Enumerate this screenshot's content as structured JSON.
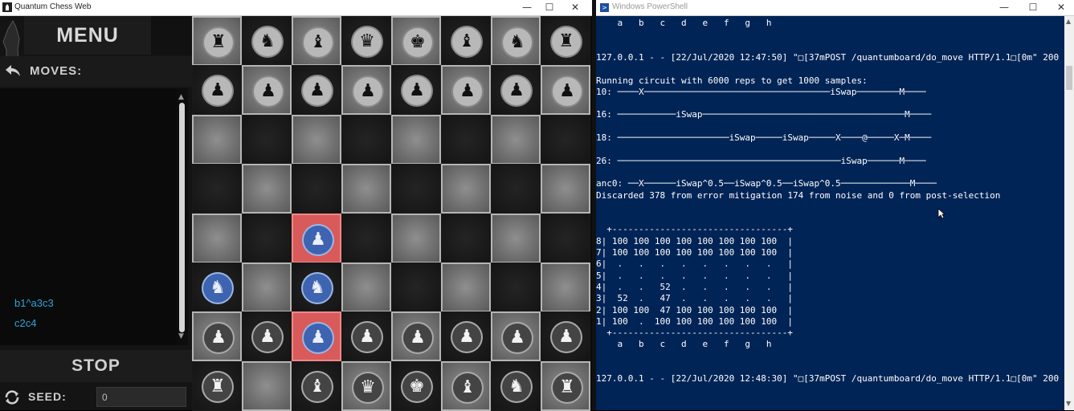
{
  "chess_window": {
    "title": "Quantum Chess Web",
    "controls": {
      "minimize": "—",
      "maximize": "☐",
      "close": "✕"
    },
    "sidebar": {
      "menu_label": "MENU",
      "moves_label": "MOVES:",
      "moves": [
        "b1^a3c3",
        "c2c4"
      ],
      "stop_label": "STOP",
      "seed_label": "SEED:",
      "seed_value": "0"
    },
    "board": {
      "squares": [
        {
          "sq": "a8",
          "color": "black",
          "glyph": "♜"
        },
        {
          "sq": "b8",
          "color": "black",
          "glyph": "♞"
        },
        {
          "sq": "c8",
          "color": "black",
          "glyph": "♝"
        },
        {
          "sq": "d8",
          "color": "black",
          "glyph": "♛"
        },
        {
          "sq": "e8",
          "color": "black",
          "glyph": "♚"
        },
        {
          "sq": "f8",
          "color": "black",
          "glyph": "♝"
        },
        {
          "sq": "g8",
          "color": "black",
          "glyph": "♞"
        },
        {
          "sq": "h8",
          "color": "black",
          "glyph": "♜"
        },
        {
          "sq": "a7",
          "color": "black",
          "glyph": "♟"
        },
        {
          "sq": "b7",
          "color": "black",
          "glyph": "♟"
        },
        {
          "sq": "c7",
          "color": "black",
          "glyph": "♟"
        },
        {
          "sq": "d7",
          "color": "black",
          "glyph": "♟"
        },
        {
          "sq": "e7",
          "color": "black",
          "glyph": "♟"
        },
        {
          "sq": "f7",
          "color": "black",
          "glyph": "♟"
        },
        {
          "sq": "g7",
          "color": "black",
          "glyph": "♟"
        },
        {
          "sq": "h7",
          "color": "black",
          "glyph": "♟"
        },
        {
          "sq": "c4",
          "color": "quantum",
          "glyph": "♟",
          "highlight": true
        },
        {
          "sq": "a3",
          "color": "quantum",
          "glyph": "♞"
        },
        {
          "sq": "c3",
          "color": "quantum",
          "glyph": "♞"
        },
        {
          "sq": "a2",
          "color": "white",
          "glyph": "♟"
        },
        {
          "sq": "b2",
          "color": "white",
          "glyph": "♟"
        },
        {
          "sq": "c2",
          "color": "quantum",
          "glyph": "♟",
          "highlight": true
        },
        {
          "sq": "d2",
          "color": "white",
          "glyph": "♟"
        },
        {
          "sq": "e2",
          "color": "white",
          "glyph": "♟"
        },
        {
          "sq": "f2",
          "color": "white",
          "glyph": "♟"
        },
        {
          "sq": "g2",
          "color": "white",
          "glyph": "♟"
        },
        {
          "sq": "h2",
          "color": "white",
          "glyph": "♟"
        },
        {
          "sq": "a1",
          "color": "white",
          "glyph": "♜"
        },
        {
          "sq": "c1",
          "color": "white",
          "glyph": "♝"
        },
        {
          "sq": "d1",
          "color": "white",
          "glyph": "♛"
        },
        {
          "sq": "e1",
          "color": "white",
          "glyph": "♚"
        },
        {
          "sq": "f1",
          "color": "white",
          "glyph": "♝"
        },
        {
          "sq": "g1",
          "color": "white",
          "glyph": "♞"
        },
        {
          "sq": "h1",
          "color": "white",
          "glyph": "♜"
        }
      ]
    }
  },
  "powershell_window": {
    "title": "Windows PowerShell",
    "controls": {
      "minimize": "—",
      "maximize": "☐",
      "close": "✕"
    },
    "lines": [
      "    a   b   c   d   e   f   g   h",
      "",
      "",
      "127.0.0.1 - - [22/Jul/2020 12:47:50] \"□[37mPOST /quantumboard/do_move HTTP/1.1□[0m\" 200 -",
      "",
      "Running circuit with 6000 reps to get 1000 samples:",
      "10: ────X───────────────────────────────────iSwap────────M────",
      "",
      "16: ───────────iSwap──────────────────────────────────────M────",
      "",
      "18: ─────────────────────iSwap─────iSwap─────X────@─────X─M────",
      "",
      "26: ──────────────────────────────────────────iSwap──────M────",
      "",
      "anc0: ──X──────iSwap^0.5──iSwap^0.5──iSwap^0.5─────────────M────",
      "Discarded 378 from error mitigation 174 from noise and 0 from post-selection",
      "",
      "",
      "  +---------------------------------+",
      "8| 100 100 100 100 100 100 100 100  |",
      "7| 100 100 100 100 100 100 100 100  |",
      "6|  .   .   .   .   .   .   .   .   |",
      "5|  .   .   .   .   .   .   .   .   |",
      "4|  .   .   52  .   .   .   .   .   |",
      "3|  52  .   47  .   .   .   .   .   |",
      "2| 100 100  47 100 100 100 100 100  |",
      "1| 100  .  100 100 100 100 100 100  |",
      "  +---------------------------------+",
      "    a   b   c   d   e   f   g   h",
      "",
      "",
      "127.0.0.1 - - [22/Jul/2020 12:48:30] \"□[37mPOST /quantumboard/do_move HTTP/1.1□[0m\" 200 -"
    ]
  },
  "colors": {
    "powershell_bg": "#012456",
    "move_text": "#2fa5d8",
    "highlight_square": "#d95a5a",
    "quantum_piece": "#3e63b0"
  },
  "icons": [
    "app-logo-icon",
    "undo-arrow-icon",
    "refresh-icon",
    "powershell-icon",
    "mouse-cursor-icon"
  ]
}
